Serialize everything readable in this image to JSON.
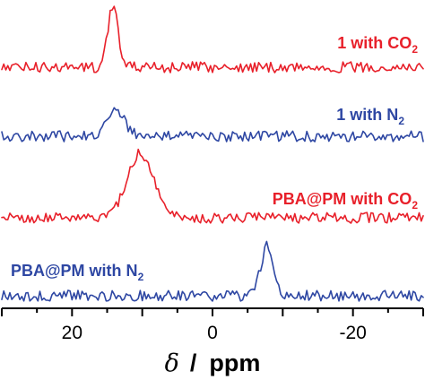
{
  "chart_data": {
    "type": "line",
    "x_axis": {
      "label_symbol": "δ",
      "label_sep": "/",
      "label_unit": "ppm",
      "xlim": [
        30,
        -30
      ],
      "reversed": true,
      "ticks": [
        20,
        0,
        -20
      ],
      "tick_labels": [
        "20",
        "0",
        "-20"
      ]
    },
    "y_axis": {
      "shown": false
    },
    "series": [
      {
        "name_main": "1 with CO",
        "name_sub": "2",
        "color": "#e8202a",
        "peak_ppm": 14.2,
        "peak_width_ppm": 0.7,
        "peak_height": 1.0
      },
      {
        "name_main": "1 with N",
        "name_sub": "2",
        "color": "#2e47a3",
        "peak_ppm": 13.8,
        "peak_width_ppm": 1.2,
        "peak_height": 0.65
      },
      {
        "name_main": "PBA@PM with CO",
        "name_sub": "2",
        "color": "#e8202a",
        "peak_ppm": 10.3,
        "peak_width_ppm": 1.9,
        "peak_height": 1.0
      },
      {
        "name_main": "PBA@PM with N",
        "name_sub": "2",
        "color": "#2e47a3",
        "peak_ppm": -7.8,
        "peak_width_ppm": 0.9,
        "peak_height": 1.0
      }
    ]
  }
}
